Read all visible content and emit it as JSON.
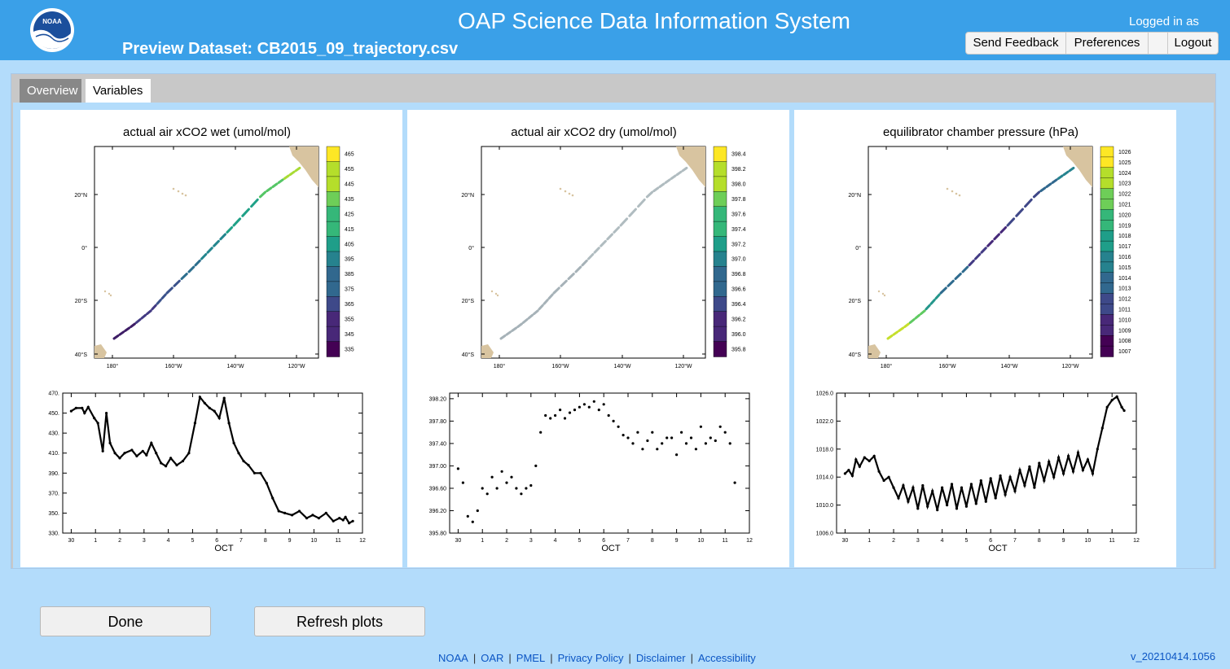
{
  "header": {
    "logo_text": "NOAA",
    "app_title": "OAP Science Data Information System",
    "dataset_title": "Preview Dataset: CB2015_09_trajectory.csv",
    "logged_in": "Logged in as",
    "menu": [
      "Send Feedback",
      "Preferences",
      "",
      "Logout"
    ]
  },
  "tabs": [
    "Overview",
    "Variables"
  ],
  "actions": {
    "done": "Done",
    "refresh": "Refresh plots"
  },
  "footer": {
    "links": [
      "NOAA",
      "OAR",
      "PMEL",
      "Privacy Policy",
      "Disclaimer",
      "Accessibility"
    ],
    "version": "v_20210414.1056"
  },
  "colors": {
    "header": "#3aa0e8",
    "land": "#d8c4a0",
    "body_bg": "#b3dcfb"
  },
  "map_axes": {
    "lat_labels": [
      "20°N",
      "0°",
      "20°S",
      "40°S"
    ],
    "lon_labels": [
      "180°",
      "160°W",
      "140°W",
      "120°W"
    ]
  },
  "chart_data": [
    {
      "type": "scatter",
      "title": "actual air xCO2 wet (umol/mol)",
      "map_colorbar_labels": [
        "465",
        "455",
        "445",
        "435",
        "425",
        "415",
        "405",
        "395",
        "385",
        "375",
        "365",
        "355",
        "345",
        "335"
      ],
      "map_track_colors": [
        "#3e1d66",
        "#433a83",
        "#3b528b",
        "#2d6f8e",
        "#24868e",
        "#1fa187",
        "#55c666",
        "#a8db34"
      ],
      "xlabel": "OCT",
      "x_ticks": [
        "30",
        "1",
        "2",
        "3",
        "4",
        "5",
        "6",
        "7",
        "8",
        "9",
        "10",
        "11",
        "12"
      ],
      "y_ticks": [
        "470.",
        "450.",
        "430.",
        "410.",
        "390.",
        "370.",
        "350.",
        "330."
      ],
      "ylim": [
        330,
        470
      ],
      "series": [
        {
          "name": "xCO2 wet",
          "x": [
            0.0,
            0.2,
            0.45,
            0.55,
            0.7,
            0.95,
            1.1,
            1.3,
            1.45,
            1.6,
            1.8,
            2.0,
            2.2,
            2.5,
            2.7,
            2.95,
            3.1,
            3.3,
            3.5,
            3.7,
            3.9,
            4.1,
            4.35,
            4.6,
            4.85,
            5.1,
            5.3,
            5.5,
            5.7,
            5.9,
            6.1,
            6.3,
            6.5,
            6.7,
            6.9,
            7.1,
            7.3,
            7.55,
            7.8,
            8.05,
            8.3,
            8.55,
            8.8,
            9.1,
            9.4,
            9.7,
            9.95,
            10.2,
            10.5,
            10.8,
            11.05,
            11.2,
            11.3,
            11.45,
            11.6
          ],
          "y": [
            452,
            455,
            455,
            450,
            456,
            445,
            440,
            412,
            450,
            420,
            410,
            405,
            410,
            413,
            407,
            412,
            408,
            420,
            410,
            400,
            397,
            405,
            398,
            402,
            410,
            440,
            466,
            460,
            455,
            452,
            445,
            465,
            440,
            420,
            410,
            402,
            398,
            390,
            390,
            380,
            365,
            352,
            350,
            348,
            352,
            345,
            348,
            345,
            350,
            342,
            345,
            343,
            346,
            340,
            342
          ]
        }
      ]
    },
    {
      "type": "scatter",
      "title": "actual air xCO2 dry (umol/mol)",
      "map_colorbar_labels": [
        "398.4",
        "398.2",
        "398.0",
        "397.8",
        "397.6",
        "397.4",
        "397.2",
        "397.0",
        "396.8",
        "396.6",
        "396.4",
        "396.2",
        "396.0",
        "395.8"
      ],
      "map_track_colors": [
        "#a6b2b8",
        "#b0bcc0"
      ],
      "xlabel": "OCT",
      "x_ticks": [
        "30",
        "1",
        "2",
        "3",
        "4",
        "5",
        "6",
        "7",
        "8",
        "9",
        "10",
        "11",
        "12"
      ],
      "y_ticks": [
        "398.20",
        "397.80",
        "397.40",
        "397.00",
        "396.60",
        "396.20",
        "395.80"
      ],
      "ylim": [
        395.8,
        398.3
      ],
      "series": [
        {
          "name": "xCO2 dry",
          "x": [
            0.0,
            0.2,
            0.4,
            0.6,
            0.8,
            1.0,
            1.2,
            1.4,
            1.6,
            1.8,
            2.0,
            2.2,
            2.4,
            2.6,
            2.8,
            3.0,
            3.2,
            3.4,
            3.6,
            3.8,
            4.0,
            4.2,
            4.4,
            4.6,
            4.8,
            5.0,
            5.2,
            5.4,
            5.6,
            5.8,
            6.0,
            6.2,
            6.4,
            6.6,
            6.8,
            7.0,
            7.2,
            7.4,
            7.6,
            7.8,
            8.0,
            8.2,
            8.4,
            8.6,
            8.8,
            9.0,
            9.2,
            9.4,
            9.6,
            9.8,
            10.0,
            10.2,
            10.4,
            10.6,
            10.8,
            11.0,
            11.2,
            11.4
          ],
          "y": [
            396.95,
            396.7,
            396.1,
            396.0,
            396.2,
            396.6,
            396.5,
            396.8,
            396.6,
            396.9,
            396.7,
            396.8,
            396.6,
            396.5,
            396.6,
            396.65,
            397.0,
            397.6,
            397.9,
            397.85,
            397.9,
            398.0,
            397.85,
            397.95,
            398.0,
            398.05,
            398.1,
            398.05,
            398.15,
            398.0,
            398.1,
            397.9,
            397.8,
            397.7,
            397.55,
            397.5,
            397.4,
            397.6,
            397.3,
            397.45,
            397.6,
            397.3,
            397.4,
            397.5,
            397.5,
            397.2,
            397.6,
            397.4,
            397.5,
            397.3,
            397.7,
            397.4,
            397.5,
            397.45,
            397.7,
            397.6,
            397.4,
            396.7
          ]
        }
      ]
    },
    {
      "type": "scatter",
      "title": "equilibrator chamber pressure (hPa)",
      "map_colorbar_labels": [
        "1026",
        "1025",
        "1024",
        "1023",
        "1022",
        "1021",
        "1020",
        "1019",
        "1018",
        "1017",
        "1016",
        "1015",
        "1014",
        "1013",
        "1012",
        "1011",
        "1010",
        "1009",
        "1008",
        "1007"
      ],
      "map_track_colors": [
        "#c5df2c",
        "#5fca61",
        "#24968b",
        "#2f6b8e",
        "#433b84",
        "#472a7a",
        "#3f4788",
        "#31688e",
        "#26838f"
      ],
      "xlabel": "OCT",
      "x_ticks": [
        "30",
        "1",
        "2",
        "3",
        "4",
        "5",
        "6",
        "7",
        "8",
        "9",
        "10",
        "11",
        "12"
      ],
      "y_ticks": [
        "1026.0",
        "1022.0",
        "1018.0",
        "1014.0",
        "1010.0",
        "1006.0"
      ],
      "ylim": [
        1006,
        1026
      ],
      "series": [
        {
          "name": "pressure",
          "x": [
            0.0,
            0.15,
            0.3,
            0.45,
            0.6,
            0.8,
            1.0,
            1.2,
            1.4,
            1.6,
            1.8,
            2.0,
            2.2,
            2.4,
            2.6,
            2.8,
            3.0,
            3.2,
            3.4,
            3.6,
            3.8,
            4.0,
            4.2,
            4.4,
            4.6,
            4.8,
            5.0,
            5.2,
            5.4,
            5.6,
            5.8,
            6.0,
            6.2,
            6.4,
            6.6,
            6.8,
            7.0,
            7.2,
            7.4,
            7.6,
            7.8,
            8.0,
            8.2,
            8.4,
            8.6,
            8.8,
            9.0,
            9.2,
            9.4,
            9.6,
            9.8,
            10.0,
            10.2,
            10.4,
            10.6,
            10.8,
            11.0,
            11.2,
            11.4,
            11.5
          ],
          "y": [
            1014.5,
            1015.0,
            1014.2,
            1016.5,
            1015.5,
            1016.8,
            1016.3,
            1017.0,
            1014.8,
            1013.5,
            1014.0,
            1012.5,
            1011.0,
            1012.8,
            1010.5,
            1012.5,
            1009.5,
            1012.8,
            1009.8,
            1012.0,
            1009.3,
            1012.5,
            1010.0,
            1013.0,
            1009.5,
            1012.5,
            1009.8,
            1013.0,
            1010.2,
            1013.5,
            1010.5,
            1013.8,
            1011.0,
            1014.2,
            1011.5,
            1014.0,
            1012.0,
            1015.0,
            1012.8,
            1015.5,
            1012.5,
            1016.0,
            1013.5,
            1016.2,
            1014.0,
            1016.8,
            1014.5,
            1017.0,
            1014.8,
            1017.5,
            1015.0,
            1016.5,
            1014.5,
            1018.0,
            1021.0,
            1024.0,
            1025.0,
            1025.5,
            1024.0,
            1023.5
          ]
        }
      ]
    }
  ]
}
